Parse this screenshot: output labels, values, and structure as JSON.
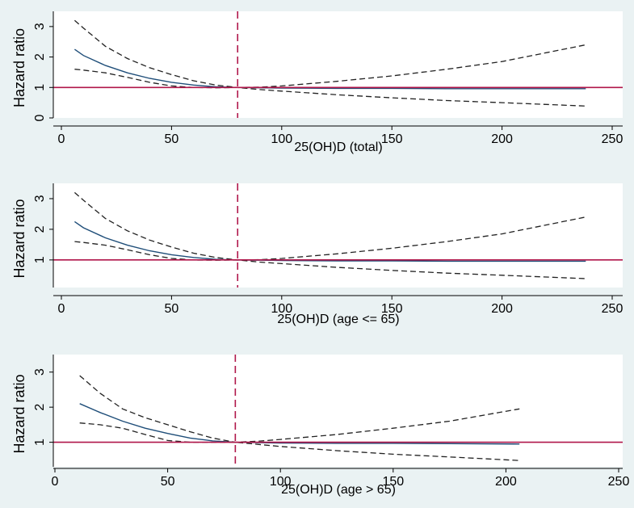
{
  "chart_data": [
    {
      "type": "line",
      "title": "",
      "xlabel": "25(OH)D (total)",
      "ylabel": "Hazard ratio",
      "xlim": [
        0,
        250
      ],
      "ylim": [
        0,
        3.5
      ],
      "xticks": [
        0,
        50,
        100,
        150,
        200,
        250
      ],
      "yticks": [
        0,
        1,
        2,
        3
      ],
      "reference_hline": 1,
      "reference_vline": 80,
      "series": [
        {
          "style": "solid",
          "color": "#1f4e79",
          "x": [
            6,
            10,
            20,
            30,
            40,
            50,
            60,
            70,
            80,
            90,
            100,
            125,
            150,
            175,
            200,
            238
          ],
          "y": [
            2.25,
            2.05,
            1.72,
            1.48,
            1.3,
            1.17,
            1.08,
            1.02,
            1.0,
            0.99,
            0.98,
            0.97,
            0.97,
            0.96,
            0.96,
            0.96
          ]
        },
        {
          "style": "dashed",
          "color": "#222222",
          "x": [
            6,
            10,
            20,
            30,
            40,
            50,
            60,
            70,
            80,
            90,
            100,
            125,
            150,
            175,
            200,
            238
          ],
          "y": [
            3.2,
            2.95,
            2.35,
            1.95,
            1.65,
            1.42,
            1.22,
            1.08,
            1.0,
            1.01,
            1.05,
            1.2,
            1.38,
            1.6,
            1.85,
            2.4
          ]
        },
        {
          "style": "dashed",
          "color": "#222222",
          "x": [
            6,
            10,
            20,
            30,
            40,
            50,
            60,
            70,
            80,
            90,
            100,
            125,
            150,
            175,
            200,
            238
          ],
          "y": [
            1.6,
            1.57,
            1.48,
            1.33,
            1.17,
            1.05,
            1.0,
            0.99,
            1.0,
            0.93,
            0.88,
            0.76,
            0.66,
            0.57,
            0.5,
            0.39
          ]
        }
      ]
    },
    {
      "type": "line",
      "title": "",
      "xlabel": "25(OH)D (age <= 65)",
      "ylabel": "Hazard ratio",
      "xlim": [
        0,
        250
      ],
      "ylim": [
        0.1,
        3.5
      ],
      "xticks": [
        0,
        50,
        100,
        150,
        200,
        250
      ],
      "yticks": [
        1,
        2,
        3
      ],
      "reference_hline": 1,
      "reference_vline": 80,
      "series": [
        {
          "style": "solid",
          "color": "#1f4e79",
          "x": [
            6,
            10,
            20,
            30,
            40,
            50,
            60,
            70,
            80,
            90,
            100,
            125,
            150,
            175,
            200,
            238
          ],
          "y": [
            2.25,
            2.05,
            1.72,
            1.48,
            1.3,
            1.17,
            1.08,
            1.02,
            1.0,
            0.99,
            0.98,
            0.97,
            0.97,
            0.96,
            0.96,
            0.96
          ]
        },
        {
          "style": "dashed",
          "color": "#222222",
          "x": [
            6,
            10,
            20,
            30,
            40,
            50,
            60,
            70,
            80,
            90,
            100,
            125,
            150,
            175,
            200,
            238
          ],
          "y": [
            3.2,
            2.95,
            2.35,
            1.95,
            1.65,
            1.42,
            1.22,
            1.08,
            1.0,
            1.01,
            1.05,
            1.2,
            1.38,
            1.6,
            1.85,
            2.4
          ]
        },
        {
          "style": "dashed",
          "color": "#222222",
          "x": [
            6,
            10,
            20,
            30,
            40,
            50,
            60,
            70,
            80,
            90,
            100,
            125,
            150,
            175,
            200,
            238
          ],
          "y": [
            1.6,
            1.57,
            1.48,
            1.33,
            1.17,
            1.05,
            1.0,
            0.99,
            1.0,
            0.93,
            0.88,
            0.76,
            0.66,
            0.57,
            0.5,
            0.39
          ]
        }
      ]
    },
    {
      "type": "line",
      "title": "",
      "xlabel": "25(OH)D (age > 65)",
      "ylabel": "Hazard ratio",
      "xlim": [
        0,
        250
      ],
      "ylim": [
        0.3,
        3.5
      ],
      "xticks": [
        0,
        50,
        100,
        150,
        200,
        250
      ],
      "yticks": [
        1,
        2,
        3
      ],
      "reference_hline": 1,
      "reference_vline": 80,
      "series": [
        {
          "style": "solid",
          "color": "#1f4e79",
          "x": [
            11,
            20,
            30,
            40,
            50,
            60,
            70,
            80,
            90,
            100,
            125,
            150,
            175,
            206
          ],
          "y": [
            2.1,
            1.85,
            1.6,
            1.4,
            1.25,
            1.12,
            1.04,
            1.0,
            0.99,
            0.98,
            0.97,
            0.97,
            0.96,
            0.95
          ]
        },
        {
          "style": "dashed",
          "color": "#222222",
          "x": [
            11,
            20,
            30,
            40,
            50,
            60,
            70,
            80,
            90,
            100,
            125,
            150,
            175,
            206
          ],
          "y": [
            2.9,
            2.4,
            1.95,
            1.7,
            1.5,
            1.3,
            1.12,
            1.0,
            1.03,
            1.08,
            1.22,
            1.4,
            1.6,
            1.95
          ]
        },
        {
          "style": "dashed",
          "color": "#222222",
          "x": [
            11,
            20,
            30,
            40,
            50,
            60,
            70,
            80,
            90,
            100,
            125,
            150,
            175,
            206
          ],
          "y": [
            1.55,
            1.5,
            1.4,
            1.22,
            1.05,
            1.0,
            1.0,
            1.0,
            0.94,
            0.88,
            0.76,
            0.66,
            0.58,
            0.48
          ]
        }
      ]
    }
  ],
  "colors": {
    "background": "#eaf2f3",
    "plot_area": "#ffffff",
    "reference_line": "#b0164a",
    "fit_line": "#1f4e79",
    "ci_line": "#222222"
  }
}
